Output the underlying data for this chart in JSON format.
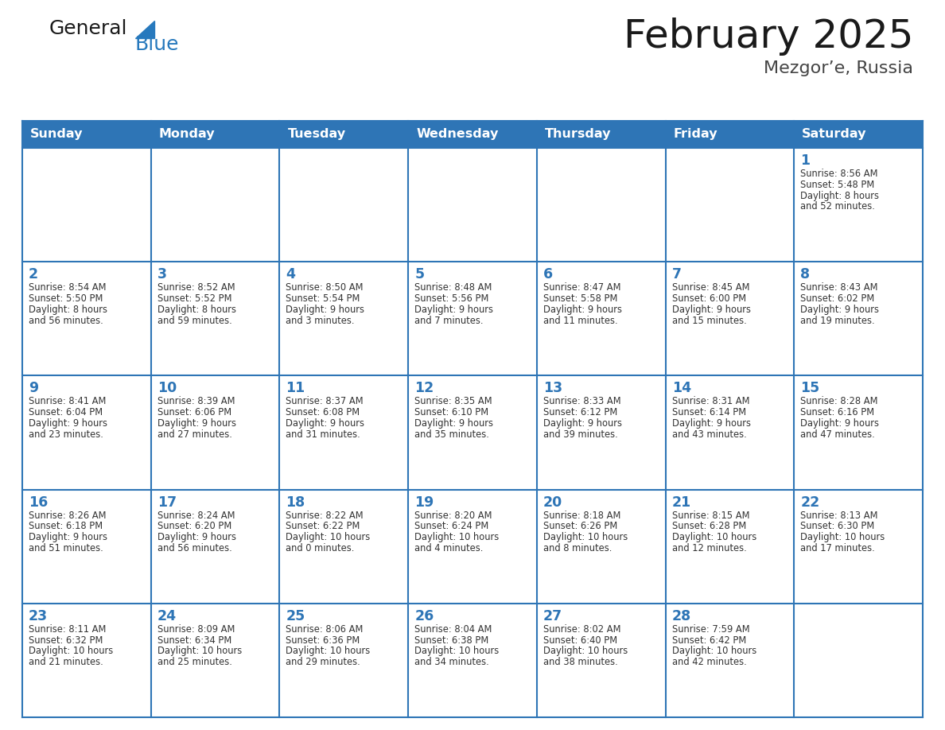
{
  "title": "February 2025",
  "subtitle": "Mezgor’e, Russia",
  "header_bg": "#2E75B6",
  "header_text_color": "#FFFFFF",
  "border_color": "#2E75B6",
  "days_of_week": [
    "Sunday",
    "Monday",
    "Tuesday",
    "Wednesday",
    "Thursday",
    "Friday",
    "Saturday"
  ],
  "title_color": "#1a1a1a",
  "subtitle_color": "#444444",
  "day_number_color": "#2E75B6",
  "cell_text_color": "#333333",
  "logo_general_color": "#1a1a1a",
  "logo_blue_color": "#2779BD",
  "calendar_data": [
    [
      {
        "day": null,
        "lines": []
      },
      {
        "day": null,
        "lines": []
      },
      {
        "day": null,
        "lines": []
      },
      {
        "day": null,
        "lines": []
      },
      {
        "day": null,
        "lines": []
      },
      {
        "day": null,
        "lines": []
      },
      {
        "day": 1,
        "lines": [
          "Sunrise: 8:56 AM",
          "Sunset: 5:48 PM",
          "Daylight: 8 hours",
          "and 52 minutes."
        ]
      }
    ],
    [
      {
        "day": 2,
        "lines": [
          "Sunrise: 8:54 AM",
          "Sunset: 5:50 PM",
          "Daylight: 8 hours",
          "and 56 minutes."
        ]
      },
      {
        "day": 3,
        "lines": [
          "Sunrise: 8:52 AM",
          "Sunset: 5:52 PM",
          "Daylight: 8 hours",
          "and 59 minutes."
        ]
      },
      {
        "day": 4,
        "lines": [
          "Sunrise: 8:50 AM",
          "Sunset: 5:54 PM",
          "Daylight: 9 hours",
          "and 3 minutes."
        ]
      },
      {
        "day": 5,
        "lines": [
          "Sunrise: 8:48 AM",
          "Sunset: 5:56 PM",
          "Daylight: 9 hours",
          "and 7 minutes."
        ]
      },
      {
        "day": 6,
        "lines": [
          "Sunrise: 8:47 AM",
          "Sunset: 5:58 PM",
          "Daylight: 9 hours",
          "and 11 minutes."
        ]
      },
      {
        "day": 7,
        "lines": [
          "Sunrise: 8:45 AM",
          "Sunset: 6:00 PM",
          "Daylight: 9 hours",
          "and 15 minutes."
        ]
      },
      {
        "day": 8,
        "lines": [
          "Sunrise: 8:43 AM",
          "Sunset: 6:02 PM",
          "Daylight: 9 hours",
          "and 19 minutes."
        ]
      }
    ],
    [
      {
        "day": 9,
        "lines": [
          "Sunrise: 8:41 AM",
          "Sunset: 6:04 PM",
          "Daylight: 9 hours",
          "and 23 minutes."
        ]
      },
      {
        "day": 10,
        "lines": [
          "Sunrise: 8:39 AM",
          "Sunset: 6:06 PM",
          "Daylight: 9 hours",
          "and 27 minutes."
        ]
      },
      {
        "day": 11,
        "lines": [
          "Sunrise: 8:37 AM",
          "Sunset: 6:08 PM",
          "Daylight: 9 hours",
          "and 31 minutes."
        ]
      },
      {
        "day": 12,
        "lines": [
          "Sunrise: 8:35 AM",
          "Sunset: 6:10 PM",
          "Daylight: 9 hours",
          "and 35 minutes."
        ]
      },
      {
        "day": 13,
        "lines": [
          "Sunrise: 8:33 AM",
          "Sunset: 6:12 PM",
          "Daylight: 9 hours",
          "and 39 minutes."
        ]
      },
      {
        "day": 14,
        "lines": [
          "Sunrise: 8:31 AM",
          "Sunset: 6:14 PM",
          "Daylight: 9 hours",
          "and 43 minutes."
        ]
      },
      {
        "day": 15,
        "lines": [
          "Sunrise: 8:28 AM",
          "Sunset: 6:16 PM",
          "Daylight: 9 hours",
          "and 47 minutes."
        ]
      }
    ],
    [
      {
        "day": 16,
        "lines": [
          "Sunrise: 8:26 AM",
          "Sunset: 6:18 PM",
          "Daylight: 9 hours",
          "and 51 minutes."
        ]
      },
      {
        "day": 17,
        "lines": [
          "Sunrise: 8:24 AM",
          "Sunset: 6:20 PM",
          "Daylight: 9 hours",
          "and 56 minutes."
        ]
      },
      {
        "day": 18,
        "lines": [
          "Sunrise: 8:22 AM",
          "Sunset: 6:22 PM",
          "Daylight: 10 hours",
          "and 0 minutes."
        ]
      },
      {
        "day": 19,
        "lines": [
          "Sunrise: 8:20 AM",
          "Sunset: 6:24 PM",
          "Daylight: 10 hours",
          "and 4 minutes."
        ]
      },
      {
        "day": 20,
        "lines": [
          "Sunrise: 8:18 AM",
          "Sunset: 6:26 PM",
          "Daylight: 10 hours",
          "and 8 minutes."
        ]
      },
      {
        "day": 21,
        "lines": [
          "Sunrise: 8:15 AM",
          "Sunset: 6:28 PM",
          "Daylight: 10 hours",
          "and 12 minutes."
        ]
      },
      {
        "day": 22,
        "lines": [
          "Sunrise: 8:13 AM",
          "Sunset: 6:30 PM",
          "Daylight: 10 hours",
          "and 17 minutes."
        ]
      }
    ],
    [
      {
        "day": 23,
        "lines": [
          "Sunrise: 8:11 AM",
          "Sunset: 6:32 PM",
          "Daylight: 10 hours",
          "and 21 minutes."
        ]
      },
      {
        "day": 24,
        "lines": [
          "Sunrise: 8:09 AM",
          "Sunset: 6:34 PM",
          "Daylight: 10 hours",
          "and 25 minutes."
        ]
      },
      {
        "day": 25,
        "lines": [
          "Sunrise: 8:06 AM",
          "Sunset: 6:36 PM",
          "Daylight: 10 hours",
          "and 29 minutes."
        ]
      },
      {
        "day": 26,
        "lines": [
          "Sunrise: 8:04 AM",
          "Sunset: 6:38 PM",
          "Daylight: 10 hours",
          "and 34 minutes."
        ]
      },
      {
        "day": 27,
        "lines": [
          "Sunrise: 8:02 AM",
          "Sunset: 6:40 PM",
          "Daylight: 10 hours",
          "and 38 minutes."
        ]
      },
      {
        "day": 28,
        "lines": [
          "Sunrise: 7:59 AM",
          "Sunset: 6:42 PM",
          "Daylight: 10 hours",
          "and 42 minutes."
        ]
      },
      {
        "day": null,
        "lines": []
      }
    ]
  ]
}
